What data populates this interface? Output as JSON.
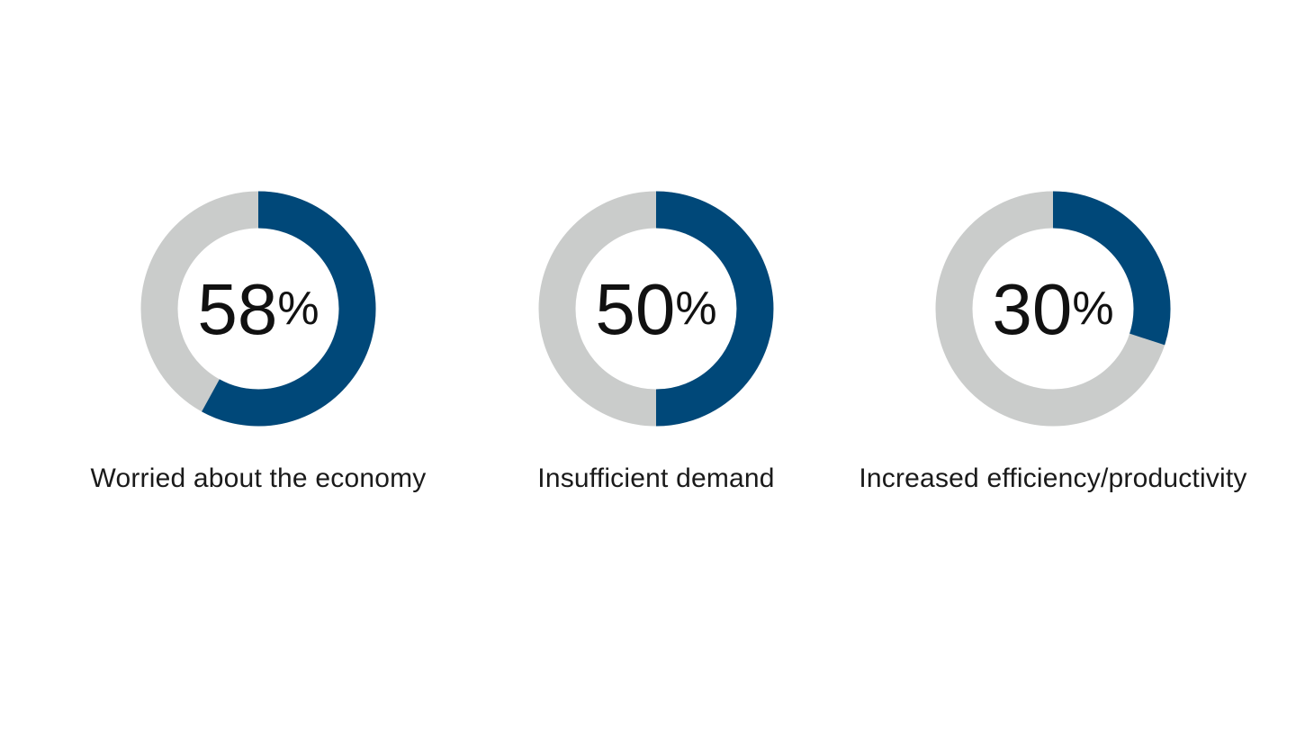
{
  "colors": {
    "filled": "#004879",
    "remaining": "#CACCCB",
    "background": "#FFFFFF"
  },
  "chart_data": [
    {
      "type": "pie",
      "variant": "donut",
      "value": 58,
      "max": 100,
      "value_label": "58",
      "unit": "%",
      "label": "Worried about the economy"
    },
    {
      "type": "pie",
      "variant": "donut",
      "value": 50,
      "max": 100,
      "value_label": "50",
      "unit": "%",
      "label": "Insufficient demand"
    },
    {
      "type": "pie",
      "variant": "donut",
      "value": 30,
      "max": 100,
      "value_label": "30",
      "unit": "%",
      "label": "Increased efficiency/productivity"
    }
  ]
}
